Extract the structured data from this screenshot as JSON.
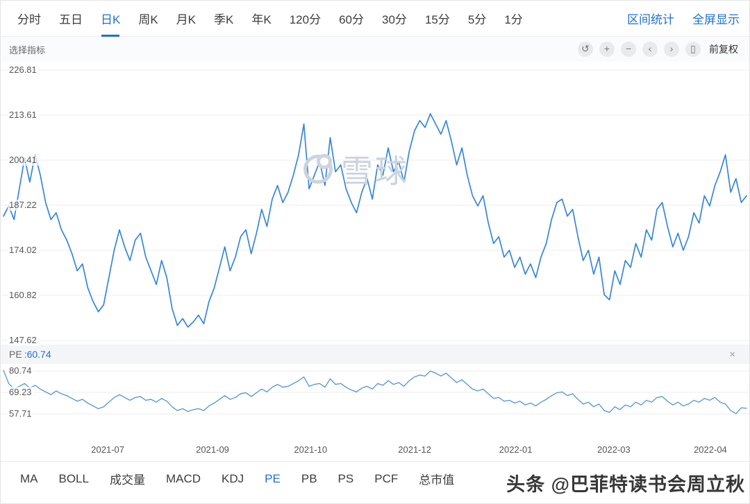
{
  "toolbar": {
    "tabs": [
      {
        "id": "minute",
        "label": "分时",
        "active": false
      },
      {
        "id": "five-day",
        "label": "五日",
        "active": false
      },
      {
        "id": "day-k",
        "label": "日K",
        "active": true
      },
      {
        "id": "week-k",
        "label": "周K",
        "active": false
      },
      {
        "id": "month-k",
        "label": "月K",
        "active": false
      },
      {
        "id": "quarter-k",
        "label": "季K",
        "active": false
      },
      {
        "id": "year-k",
        "label": "年K",
        "active": false
      },
      {
        "id": "m120",
        "label": "120分",
        "active": false
      },
      {
        "id": "m60",
        "label": "60分",
        "active": false
      },
      {
        "id": "m30",
        "label": "30分",
        "active": false
      },
      {
        "id": "m15",
        "label": "15分",
        "active": false
      },
      {
        "id": "m5",
        "label": "5分",
        "active": false
      },
      {
        "id": "m1",
        "label": "1分",
        "active": false
      }
    ],
    "links": [
      {
        "id": "range-stats",
        "label": "区间统计"
      },
      {
        "id": "fullscreen",
        "label": "全屏显示"
      }
    ]
  },
  "subbar": {
    "indicator_label": "选择指标",
    "controls": [
      {
        "id": "undo",
        "glyph": "↺"
      },
      {
        "id": "zoom-in",
        "glyph": "+"
      },
      {
        "id": "zoom-out",
        "glyph": "−"
      },
      {
        "id": "prev",
        "glyph": "‹"
      },
      {
        "id": "next",
        "glyph": "›"
      },
      {
        "id": "mobile",
        "glyph": "▯"
      }
    ],
    "adjust_label": "前复权"
  },
  "pe_panel": {
    "label": "PE",
    "value": ":60.74",
    "close_glyph": "×"
  },
  "watermark": {
    "center_text": "雪球",
    "corner_text": "头条 @巴菲特读书会周立秋"
  },
  "indicator_tabs": [
    {
      "id": "ma",
      "label": "MA",
      "active": false
    },
    {
      "id": "boll",
      "label": "BOLL",
      "active": false
    },
    {
      "id": "volume",
      "label": "成交量",
      "active": false
    },
    {
      "id": "macd",
      "label": "MACD",
      "active": false
    },
    {
      "id": "kdj",
      "label": "KDJ",
      "active": false
    },
    {
      "id": "pe",
      "label": "PE",
      "active": true
    },
    {
      "id": "pb",
      "label": "PB",
      "active": false
    },
    {
      "id": "ps",
      "label": "PS",
      "active": false
    },
    {
      "id": "pcf",
      "label": "PCF",
      "active": false
    },
    {
      "id": "market-cap",
      "label": "总市值",
      "active": false
    }
  ],
  "chart_data": [
    {
      "type": "line",
      "name": "price",
      "series_label": "daily close price",
      "color": "#3585dc",
      "yticks": [
        226.81,
        213.61,
        200.41,
        187.22,
        174.02,
        160.82,
        147.62
      ],
      "ylim": [
        147.62,
        226.81
      ],
      "grid": "horizontal",
      "xticks": [
        {
          "label": "2021-07",
          "pos": 0.143
        },
        {
          "label": "2021-09",
          "pos": 0.283
        },
        {
          "label": "2021-10",
          "pos": 0.414
        },
        {
          "label": "2021-12",
          "pos": 0.553
        },
        {
          "label": "2022-01",
          "pos": 0.688
        },
        {
          "label": "2022-03",
          "pos": 0.819
        },
        {
          "label": "2022-04",
          "pos": 0.948
        }
      ],
      "values": [
        184,
        187,
        183,
        192,
        201,
        194,
        202,
        196,
        188,
        183,
        185,
        180,
        177,
        173,
        168,
        170,
        163,
        159,
        156,
        158,
        166,
        174,
        180,
        175,
        171,
        177,
        179,
        172,
        168,
        164,
        171,
        166,
        157,
        152,
        154,
        151.5,
        153,
        155,
        152.5,
        159,
        163,
        169,
        175,
        168,
        172,
        178,
        180,
        173,
        179,
        186,
        181,
        189,
        193,
        188,
        191,
        196,
        202,
        211,
        192,
        196,
        200,
        193,
        207,
        197,
        199,
        192,
        188,
        185,
        191,
        195,
        189,
        199,
        196,
        204,
        197,
        200,
        194,
        203,
        209,
        212,
        210,
        214,
        211,
        208,
        212,
        206,
        199,
        204,
        196,
        190,
        187,
        190,
        182,
        176,
        178,
        172,
        174,
        169,
        172,
        167,
        170,
        166,
        172,
        176,
        183,
        188,
        189,
        184,
        186,
        178,
        171,
        174,
        167,
        172,
        161,
        159.5,
        168,
        164,
        171,
        169,
        176,
        172,
        180,
        177,
        186,
        188,
        181,
        175,
        179,
        174,
        178,
        185,
        182,
        190,
        187,
        193,
        197,
        202,
        191,
        195,
        188,
        190
      ]
    },
    {
      "type": "line",
      "name": "pe",
      "series_label": "PE ratio",
      "color": "#5d9bd5",
      "current_value": 60.74,
      "yticks": [
        80.74,
        69.23,
        57.71
      ],
      "ylim": [
        57.71,
        80.74
      ],
      "grid": "horizontal",
      "values": [
        81,
        74,
        71,
        72.5,
        74,
        71.5,
        73,
        71,
        69.5,
        68,
        70,
        68.5,
        67.5,
        66,
        64.5,
        65.5,
        63.5,
        62,
        60.5,
        61.5,
        64,
        66.5,
        68,
        66.5,
        65,
        66.5,
        67,
        65,
        65.5,
        64,
        66,
        64.5,
        61.5,
        59.5,
        60.5,
        59,
        60,
        60.5,
        59.5,
        62,
        63.5,
        65.5,
        67.5,
        65.5,
        66.5,
        68.5,
        69,
        67,
        69,
        71,
        69.5,
        72,
        73.5,
        72,
        72.5,
        74,
        75.5,
        77.5,
        72.5,
        73.5,
        74,
        72,
        76.5,
        73.5,
        74,
        72,
        70.5,
        69.5,
        71.5,
        72.5,
        71,
        74,
        73,
        75.5,
        73.5,
        74.5,
        72.5,
        75.5,
        77.5,
        78.5,
        78,
        80.7,
        79.5,
        78,
        79.5,
        77,
        74.5,
        76,
        73.5,
        71,
        70,
        71,
        68.5,
        66,
        66.5,
        64.5,
        65,
        63.5,
        64.5,
        62.5,
        63.5,
        62,
        64,
        65.5,
        67.5,
        69,
        69.5,
        67.5,
        68.5,
        65.5,
        63,
        64,
        61.5,
        63,
        59.5,
        58.5,
        61.5,
        60,
        62.5,
        61.5,
        64,
        62.5,
        65,
        64,
        66.5,
        67,
        64.5,
        62.5,
        64,
        62,
        63,
        65,
        64,
        66,
        65,
        66.5,
        64,
        63,
        59.5,
        57.8,
        61,
        60.74
      ]
    }
  ]
}
